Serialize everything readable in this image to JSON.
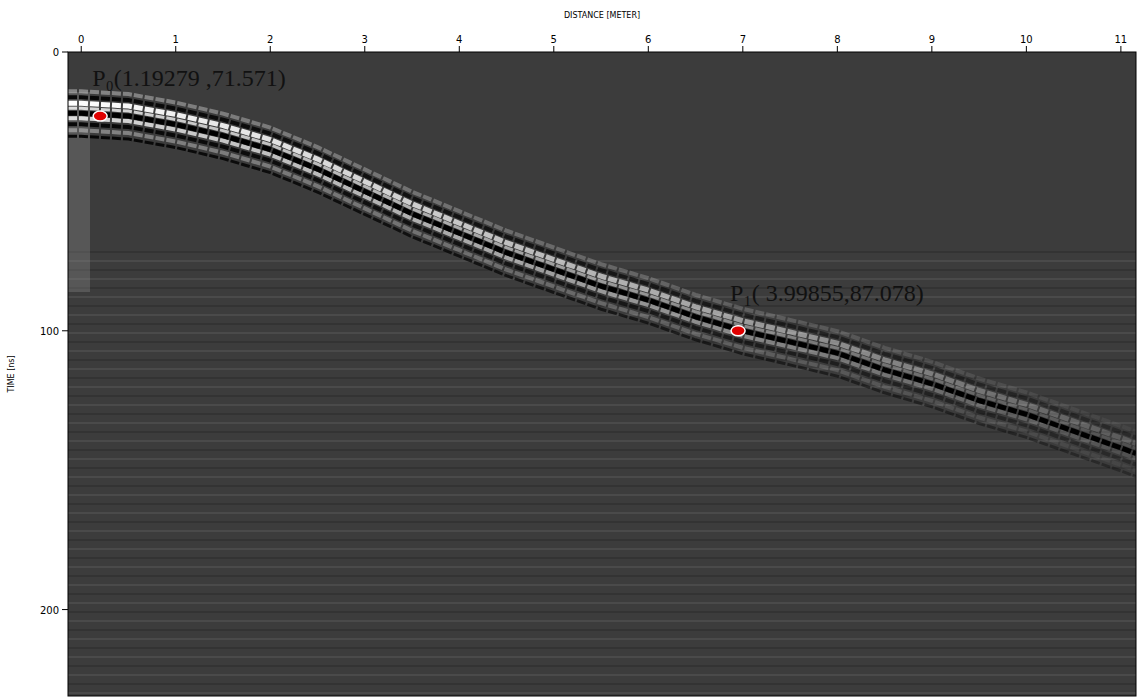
{
  "chart_data": {
    "type": "line",
    "x_label": "DISTANCE [METER]",
    "y_label": "TIME [ns]",
    "xlim": [
      -0.14,
      11.16
    ],
    "ylim": [
      231,
      0
    ],
    "xticks": [
      0,
      1,
      2,
      3,
      4,
      5,
      6,
      7,
      8,
      9,
      10,
      11
    ],
    "yticks": [
      0,
      100,
      200
    ],
    "series": [
      {
        "color": "#000000",
        "x": [
          -0.14,
          0,
          0.5,
          1,
          1.5,
          2,
          2.5,
          3,
          3.5,
          4,
          4.5,
          5,
          5.5,
          6,
          6.5,
          7,
          7.5,
          8,
          8.5,
          9,
          9.5,
          10,
          10.5,
          11,
          11.16
        ],
        "values": [
          22,
          22,
          23,
          26,
          30,
          35,
          42,
          50,
          58,
          65,
          72,
          78,
          84,
          89,
          95,
          100,
          104,
          108,
          114,
          119,
          125,
          130,
          136,
          142,
          144
        ]
      }
    ],
    "annotations": [
      {
        "x": 0.2,
        "y": 23,
        "text": "P₀(1.19279 ,71.571)",
        "color": "#e00000"
      },
      {
        "x": 6.95,
        "y": 100,
        "text": "P₁( 3.99855,87.078)",
        "color": "#e00000"
      }
    ]
  }
}
